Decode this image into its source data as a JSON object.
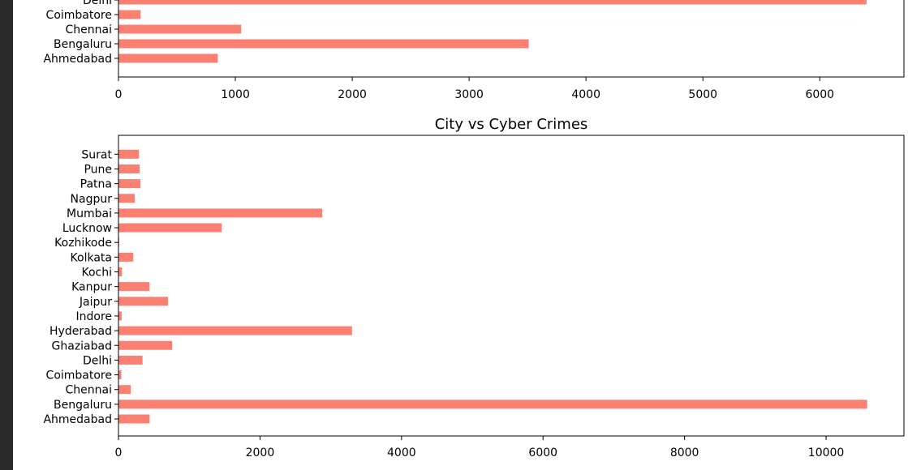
{
  "chart_data": [
    {
      "type": "bar",
      "orientation": "horizontal",
      "title": "",
      "categories": [
        "Ahmedabad",
        "Bengaluru",
        "Chennai",
        "Coimbatore",
        "Delhi"
      ],
      "values": [
        850,
        3510,
        1050,
        190,
        6400
      ],
      "xticks": [
        0,
        1000,
        2000,
        3000,
        4000,
        5000,
        6000
      ],
      "xlim": [
        0,
        6720
      ],
      "color": "#fa8072",
      "grid": false
    },
    {
      "type": "bar",
      "orientation": "horizontal",
      "title": "City vs Cyber Crimes",
      "categories": [
        "Ahmedabad",
        "Bengaluru",
        "Chennai",
        "Coimbatore",
        "Delhi",
        "Ghaziabad",
        "Hyderabad",
        "Indore",
        "Jaipur",
        "Kanpur",
        "Kochi",
        "Kolkata",
        "Kozhikode",
        "Lucknow",
        "Mumbai",
        "Nagpur",
        "Patna",
        "Pune",
        "Surat"
      ],
      "values": [
        440,
        10580,
        175,
        40,
        340,
        760,
        3300,
        45,
        700,
        440,
        50,
        210,
        10,
        1460,
        2880,
        230,
        310,
        300,
        290
      ],
      "xticks": [
        0,
        2000,
        4000,
        6000,
        8000,
        10000
      ],
      "xlim": [
        0,
        11100
      ],
      "color": "#fa8072",
      "grid": false
    }
  ]
}
